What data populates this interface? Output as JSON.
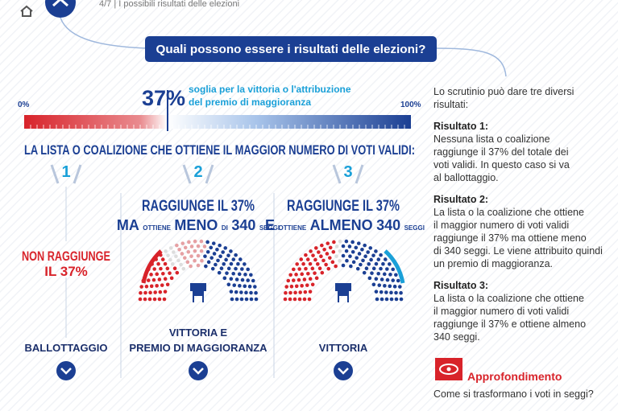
{
  "breadcrumb": "4/7 | I possibili risultati delle elezioni",
  "title": "Quali possono essere i risultati delle elezioni?",
  "threshold": {
    "value": "37%",
    "caption": [
      "soglia per la vittoria o l'attribuzione",
      "del premio di maggioranza"
    ]
  },
  "scale": {
    "min": "0%",
    "max": "100%"
  },
  "headline": "LA LISTA O COALIZIONE CHE OTTIENE IL MAGGIOR NUMERO DI VOTI VALIDI:",
  "columns": [
    {
      "number": "1",
      "condition": [
        "NON RAGGIUNGE",
        "IL 37%"
      ],
      "outcome": [
        "BALLOTTAGGIO"
      ]
    },
    {
      "number": "2",
      "condition": [
        "RAGGIUNGE IL 37%"
      ],
      "condition_parts": [
        "MA",
        "OTTIENE",
        "MENO",
        "DI",
        "340",
        "SEGGI"
      ],
      "outcome": [
        "VITTORIA E",
        "PREMIO DI MAGGIORANZA"
      ]
    },
    {
      "number": "3",
      "condition": [
        "RAGGIUNGE IL 37%"
      ],
      "condition_parts": [
        "E",
        "OTTIENE",
        "ALMENO",
        "340",
        "SEGGI"
      ],
      "outcome": [
        "VITTORIA"
      ]
    }
  ],
  "panel": {
    "intro": [
      "Lo scrutinio può dare tre diversi",
      "risultati:"
    ],
    "results": [
      {
        "heading": "Risultato 1:",
        "lines": [
          "Nessuna lista o coalizione",
          "raggiunge il 37% del totale dei",
          "voti validi. In questo caso si va",
          "al ballottaggio."
        ]
      },
      {
        "heading": "Risultato 2:",
        "lines": [
          "La lista o la coalizione che ottiene",
          "il maggior numero di voti validi",
          "raggiunge il 37% ma ottiene meno",
          "di 340 seggi. Le viene attribuito quindi",
          "un premio di maggioranza."
        ]
      },
      {
        "heading": "Risultato 3:",
        "lines": [
          "La lista o la coalizione che ottiene",
          "il maggior numero di voti validi",
          "raggiunge il 37% e ottiene almeno",
          "340 seggi."
        ]
      }
    ],
    "link": "Approfondimento",
    "link_caption": "Come si trasformano i voti in seggi?"
  }
}
